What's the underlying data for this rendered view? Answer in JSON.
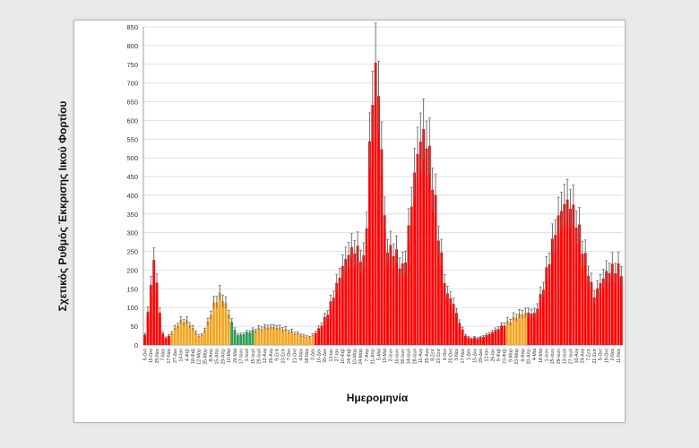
{
  "chart_data": {
    "type": "bar",
    "ylabel": "Σχετικός Ρυθμός Έκκρισης Ιικού Φορτίου",
    "xlabel": "Ημερομηνία",
    "ylim": [
      0,
      850
    ],
    "yticks": [
      0,
      50,
      100,
      150,
      200,
      250,
      300,
      350,
      400,
      450,
      500,
      550,
      600,
      650,
      700,
      750,
      800,
      850
    ],
    "grid": true,
    "error_bars": true,
    "legend": "none",
    "level_colors": {
      "high": "#ff0000",
      "medium": "#f5a623",
      "low": "#2f9e55",
      "error_bar": "#666666"
    },
    "x_tick_labels": [
      "5-Οκτ",
      "15-Οκτ",
      "25-Νοε",
      "7-Νοε",
      "17-Νοε",
      "27-Δεκ",
      "14-Ιαν",
      "4-Φεβ",
      "18-Φεβ",
      "12-Μαρ",
      "25-Μαρ",
      "8-Απρ",
      "15-Απρ",
      "29-Απρ",
      "10-Μαϊ",
      "26-Μαϊ",
      "17-Ιουν",
      "1-Ιουλ",
      "15-Ιουλ",
      "29-Ιουλ",
      "12-Αυγ",
      "26-Αυγ",
      "9-Σεπ",
      "23-Σεπ",
      "7-Οκτ",
      "21-Οκτ",
      "4-Νοε",
      "18-Νοε",
      "2-Δεκ",
      "16-Δεκ",
      "30-Δεκ",
      "13-Ιαν",
      "27-Ιαν",
      "10-Φεβ",
      "24-Φεβ",
      "10-Μαρ",
      "24-Μαρ",
      "7-Απρ",
      "21-Απρ",
      "5-Μαϊ",
      "19-Μαϊ",
      "2-Ιουν",
      "16-Ιουν",
      "30-Ιουν",
      "14-Ιουλ",
      "28-Ιουλ",
      "11-Αυγ",
      "25-Αυγ",
      "8-Σεπ",
      "22-Σεπ",
      "6-Οκτ",
      "20-Οκτ",
      "3-Νοε",
      "17-Νοε",
      "1-Δεκ",
      "15-Δεκ",
      "29-Δεκ",
      "12-Ιαν",
      "26-Ιαν",
      "9-Φεβ",
      "23-Φεβ",
      "9-Μαρ",
      "23-Μαρ",
      "6-Απρ",
      "20-Απρ",
      "4-Μαϊ",
      "18-Μαϊ",
      "1-Ιουν",
      "15-Ιουν",
      "29-Ιουν",
      "13-Ιουλ",
      "27-Ιουλ",
      "10-Αυγ",
      "24-Αυγ",
      "7-Σεπ",
      "21-Σεπ",
      "5-Οκτ",
      "19-Οκτ",
      "2-Νοε",
      "11-Νοε"
    ],
    "x_tick_samples": [
      0,
      2,
      4,
      6,
      8,
      10,
      12,
      14,
      16,
      18,
      20,
      22,
      24,
      26,
      28,
      30,
      32,
      34,
      36,
      38,
      40,
      42,
      44,
      46,
      48,
      50,
      52,
      54,
      56,
      58,
      60,
      62,
      64,
      66,
      68,
      70,
      72,
      74,
      76,
      78,
      80,
      82,
      84,
      86,
      88,
      90,
      92,
      94,
      96,
      98,
      100,
      102,
      104,
      106,
      108,
      110,
      112,
      114,
      116,
      118,
      120,
      122,
      124,
      126,
      128,
      130,
      132,
      134,
      136,
      138,
      140,
      142,
      144,
      146,
      148,
      150,
      152,
      154,
      156,
      158
    ],
    "n_samples": 160,
    "level_bands": [
      {
        "from": 0,
        "to": 8,
        "level": "high"
      },
      {
        "from": 9,
        "to": 28,
        "level": "medium"
      },
      {
        "from": 29,
        "to": 36,
        "level": "low"
      },
      {
        "from": 37,
        "to": 56,
        "level": "medium"
      },
      {
        "from": 57,
        "to": 120,
        "level": "high"
      },
      {
        "from": 121,
        "to": 127,
        "level": "medium"
      },
      {
        "from": 128,
        "to": 159,
        "level": "high"
      }
    ],
    "peaks": [
      {
        "sample": 3,
        "value": 220,
        "width": 1.4
      },
      {
        "sample": 25,
        "value": 130,
        "width": 3.0
      },
      {
        "sample": 13,
        "value": 60,
        "width": 3.0
      },
      {
        "sample": 42,
        "value": 40,
        "width": 8.0
      },
      {
        "sample": 70,
        "value": 260,
        "width": 6.0
      },
      {
        "sample": 77,
        "value": 760,
        "width": 2.4
      },
      {
        "sample": 82,
        "value": 260,
        "width": 6.0
      },
      {
        "sample": 93,
        "value": 580,
        "width": 4.5
      },
      {
        "sample": 101,
        "value": 130,
        "width": 3.0
      },
      {
        "sample": 128,
        "value": 80,
        "width": 8.0
      },
      {
        "sample": 141,
        "value": 390,
        "width": 6.0
      },
      {
        "sample": 157,
        "value": 210,
        "width": 7.0
      }
    ],
    "baseline": 20,
    "error_fraction": 0.14
  }
}
